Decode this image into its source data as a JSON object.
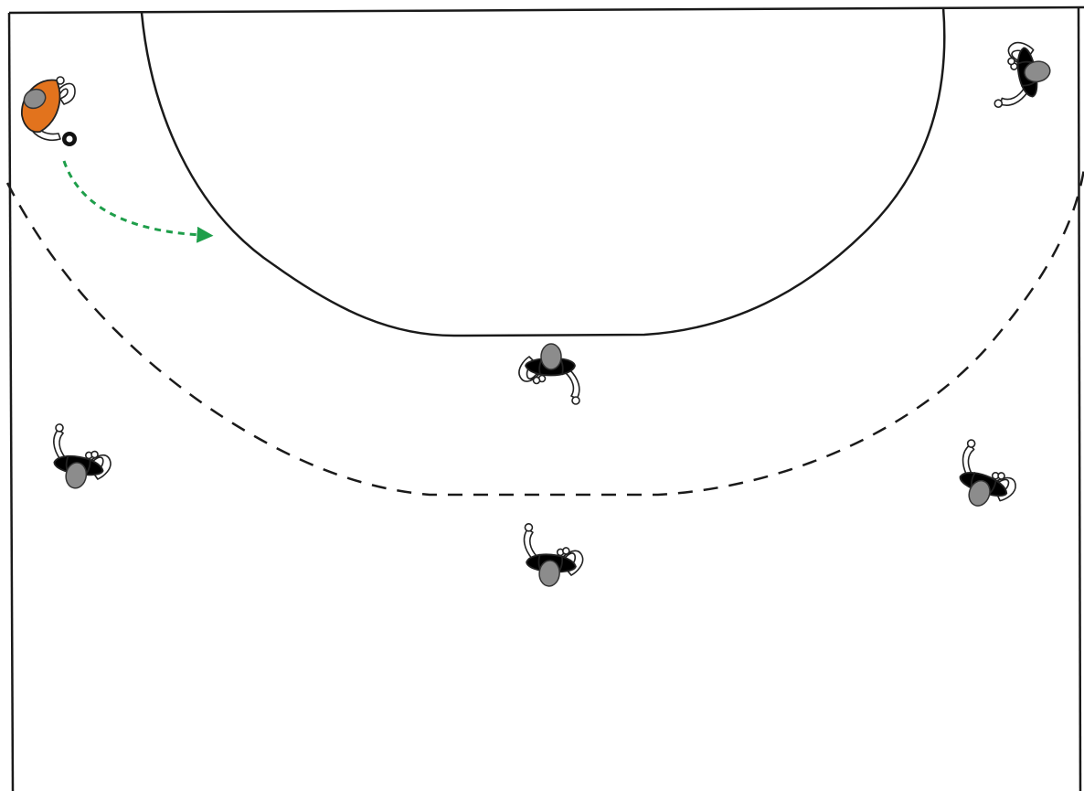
{
  "diagram": {
    "kind": "handball half-court drill",
    "colors": {
      "court_line": "#1a1a1a",
      "pass_arrow": "#1e9e4a",
      "attacker_jersey": "#e2731d",
      "defender_jersey": "#ffffff",
      "head": "#8c8c8c",
      "ball": "#111111"
    },
    "players": [
      {
        "id": "ball-carrier",
        "role": "attacker",
        "facing": "down-right",
        "has_ball": true
      },
      {
        "id": "goalkeeper",
        "role": "defender",
        "facing": "left"
      },
      {
        "id": "defender-center",
        "role": "defender",
        "facing": "up"
      },
      {
        "id": "defender-left-back",
        "role": "defender",
        "facing": "up-right"
      },
      {
        "id": "defender-center-back",
        "role": "defender",
        "facing": "up"
      },
      {
        "id": "defender-right-back",
        "role": "defender",
        "facing": "up-left"
      }
    ],
    "movements": [
      {
        "id": "pass-1",
        "type": "pass",
        "style": "dashed-arrow",
        "from": "ball-carrier",
        "direction": "toward 6m line"
      }
    ]
  }
}
